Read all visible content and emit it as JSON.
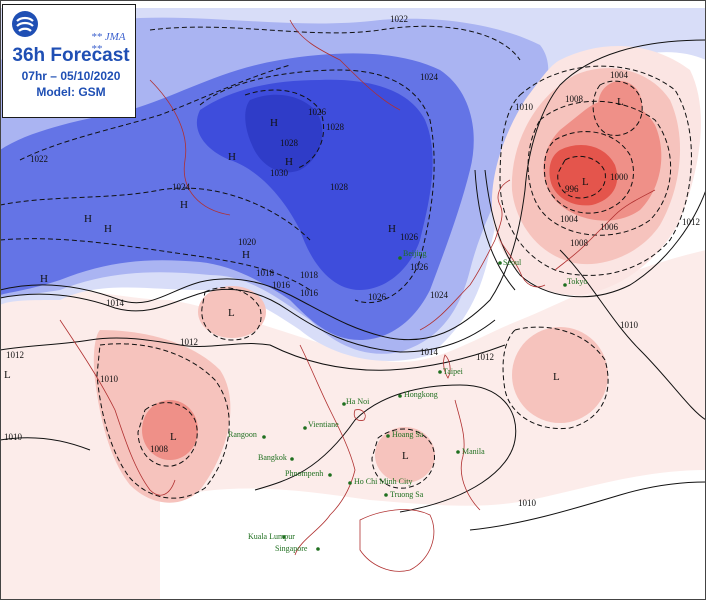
{
  "header": {
    "agency": "** JMA **",
    "title": "36h Forecast",
    "valid_time": "07hr – 05/10/2020",
    "model": "Model: GSM"
  },
  "colors": {
    "high_deep": "#3e4ddc",
    "high_mid": "#6474e6",
    "high_light": "#aab4f2",
    "high_pale": "#d8ddf8",
    "low_pale": "#fbe5e3",
    "low_light": "#f6c3bd",
    "low_mid": "#ef9088",
    "low_deep": "#e4554c",
    "coast": "#b03030",
    "city": "#1f6f1f"
  },
  "systems": [
    {
      "type": "H",
      "label": "H"
    },
    {
      "type": "H",
      "label": "H"
    },
    {
      "type": "H",
      "label": "H"
    },
    {
      "type": "H",
      "label": "H"
    },
    {
      "type": "H",
      "label": "H"
    },
    {
      "type": "H",
      "label": "H"
    },
    {
      "type": "H",
      "label": "H"
    },
    {
      "type": "H",
      "label": "H"
    },
    {
      "type": "H",
      "label": "H"
    },
    {
      "type": "L",
      "label": "L"
    },
    {
      "type": "L",
      "label": "L"
    },
    {
      "type": "L",
      "label": "L"
    },
    {
      "type": "L",
      "label": "L"
    },
    {
      "type": "L",
      "label": "L"
    },
    {
      "type": "L",
      "label": "L"
    },
    {
      "type": "L",
      "label": "L"
    }
  ],
  "isobar_labels": [
    "1022",
    "1024",
    "1026",
    "1028",
    "1030",
    "1020",
    "1022",
    "1024",
    "1018",
    "1016",
    "1014",
    "1012",
    "1010",
    "1008",
    "1004",
    "1000",
    "996",
    "1008",
    "1010",
    "1012",
    "1006",
    "1004",
    "1008",
    "1010",
    "1010",
    "1010",
    "1012",
    "1024",
    "1026",
    "1026",
    "1028",
    "1020",
    "1016",
    "1014",
    "1012",
    "1018",
    "1026",
    "1028"
  ],
  "cities": [
    {
      "name": "Beijing"
    },
    {
      "name": "Seoul"
    },
    {
      "name": "Tokyo"
    },
    {
      "name": "Taipei"
    },
    {
      "name": "Hongkong"
    },
    {
      "name": "Ha Noi"
    },
    {
      "name": "Vientiane"
    },
    {
      "name": "Rangoon"
    },
    {
      "name": "Bangkok"
    },
    {
      "name": "Phnompenh"
    },
    {
      "name": "Hoang Sa"
    },
    {
      "name": "Manila"
    },
    {
      "name": "Ho Chi Minh City"
    },
    {
      "name": "Truong Sa"
    },
    {
      "name": "Kuala Lumpur"
    },
    {
      "name": "Singapore"
    }
  ]
}
